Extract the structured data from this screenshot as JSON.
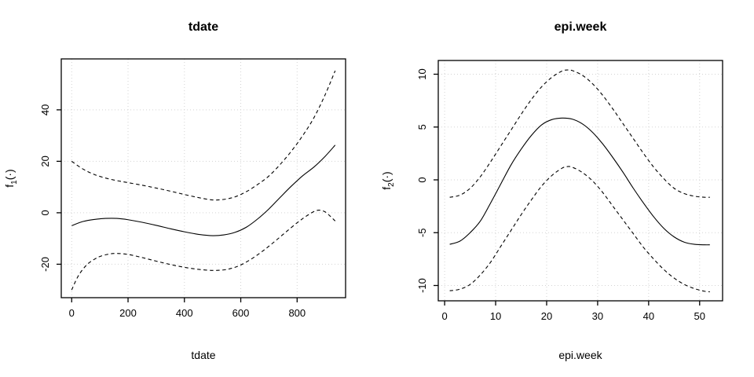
{
  "figure": {
    "background_color": "#ffffff",
    "curve_color": "#000000",
    "grid_color": "#d3d3d3",
    "axis_color": "#000000"
  },
  "chart_data": [
    {
      "type": "line",
      "title": "tdate",
      "xlabel": "tdate",
      "ylabel": "f1(·)",
      "ylabel_parts": {
        "base": "f",
        "sub": "1",
        "args": "(·)"
      },
      "xlim": [
        -37,
        972
      ],
      "ylim": [
        -33,
        59.8
      ],
      "xticks": [
        0,
        200,
        400,
        600,
        800
      ],
      "yticks": [
        -20,
        0,
        20,
        40
      ],
      "grid": true,
      "legend": "none",
      "series": [
        {
          "name": "fitted-estimate",
          "style": "solid",
          "points": [
            [
              0,
              -5.0
            ],
            [
              40,
              -3.4
            ],
            [
              80,
              -2.6
            ],
            [
              120,
              -2.2
            ],
            [
              160,
              -2.2
            ],
            [
              200,
              -2.7
            ],
            [
              250,
              -3.7
            ],
            [
              300,
              -4.9
            ],
            [
              350,
              -6.2
            ],
            [
              400,
              -7.4
            ],
            [
              450,
              -8.4
            ],
            [
              500,
              -8.9
            ],
            [
              540,
              -8.6
            ],
            [
              580,
              -7.6
            ],
            [
              620,
              -5.6
            ],
            [
              660,
              -2.4
            ],
            [
              700,
              1.5
            ],
            [
              740,
              6.0
            ],
            [
              780,
              10.4
            ],
            [
              820,
              14.4
            ],
            [
              860,
              17.8
            ],
            [
              900,
              22.0
            ],
            [
              935,
              26.3
            ]
          ]
        },
        {
          "name": "upper-confidence-band",
          "style": "dashed",
          "points": [
            [
              0,
              20.0
            ],
            [
              40,
              17.0
            ],
            [
              80,
              14.9
            ],
            [
              120,
              13.5
            ],
            [
              160,
              12.5
            ],
            [
              200,
              11.7
            ],
            [
              250,
              10.7
            ],
            [
              300,
              9.6
            ],
            [
              350,
              8.4
            ],
            [
              400,
              7.1
            ],
            [
              450,
              5.9
            ],
            [
              500,
              5.0
            ],
            [
              540,
              5.2
            ],
            [
              580,
              6.2
            ],
            [
              620,
              8.2
            ],
            [
              660,
              11.0
            ],
            [
              700,
              14.3
            ],
            [
              740,
              18.8
            ],
            [
              780,
              24.0
            ],
            [
              820,
              30.0
            ],
            [
              860,
              37.0
            ],
            [
              900,
              46.0
            ],
            [
              935,
              55.2
            ]
          ]
        },
        {
          "name": "lower-confidence-band",
          "style": "dashed",
          "points": [
            [
              0,
              -30.0
            ],
            [
              20,
              -25.2
            ],
            [
              40,
              -21.9
            ],
            [
              60,
              -19.6
            ],
            [
              80,
              -18.1
            ],
            [
              100,
              -17.0
            ],
            [
              130,
              -16.1
            ],
            [
              160,
              -15.8
            ],
            [
              200,
              -16.2
            ],
            [
              250,
              -17.4
            ],
            [
              300,
              -18.8
            ],
            [
              350,
              -20.1
            ],
            [
              400,
              -21.2
            ],
            [
              450,
              -22.0
            ],
            [
              500,
              -22.4
            ],
            [
              540,
              -22.2
            ],
            [
              570,
              -21.5
            ],
            [
              600,
              -20.3
            ],
            [
              640,
              -17.8
            ],
            [
              680,
              -14.7
            ],
            [
              720,
              -11.2
            ],
            [
              760,
              -7.5
            ],
            [
              800,
              -3.9
            ],
            [
              830,
              -1.5
            ],
            [
              860,
              0.5
            ],
            [
              880,
              1.0
            ],
            [
              900,
              0.3
            ],
            [
              920,
              -1.6
            ],
            [
              935,
              -3.2
            ]
          ]
        }
      ]
    },
    {
      "type": "line",
      "title": "epi.week",
      "xlabel": "epi.week",
      "ylabel": "f2(·)",
      "ylabel_parts": {
        "base": "f",
        "sub": "2",
        "args": "(·)"
      },
      "xlim": [
        -1.25,
        54.5
      ],
      "ylim": [
        -11.45,
        11.3
      ],
      "xticks": [
        0,
        10,
        20,
        30,
        40,
        50
      ],
      "yticks": [
        -10,
        -5,
        0,
        5,
        10
      ],
      "grid": true,
      "legend": "none",
      "series": [
        {
          "name": "fitted-estimate",
          "style": "solid",
          "points": [
            [
              1,
              -6.1
            ],
            [
              3,
              -5.8
            ],
            [
              5,
              -5.0
            ],
            [
              7,
              -3.9
            ],
            [
              9,
              -2.2
            ],
            [
              11,
              -0.4
            ],
            [
              13,
              1.4
            ],
            [
              15,
              2.9
            ],
            [
              17,
              4.2
            ],
            [
              19,
              5.2
            ],
            [
              21,
              5.7
            ],
            [
              23,
              5.85
            ],
            [
              25,
              5.75
            ],
            [
              27,
              5.3
            ],
            [
              29,
              4.5
            ],
            [
              31,
              3.4
            ],
            [
              33,
              2.1
            ],
            [
              35,
              0.7
            ],
            [
              37,
              -0.8
            ],
            [
              39,
              -2.2
            ],
            [
              41,
              -3.5
            ],
            [
              43,
              -4.6
            ],
            [
              45,
              -5.4
            ],
            [
              47,
              -5.9
            ],
            [
              49,
              -6.1
            ],
            [
              51,
              -6.15
            ],
            [
              52,
              -6.15
            ]
          ]
        },
        {
          "name": "upper-confidence-band",
          "style": "dashed",
          "points": [
            [
              1,
              -1.65
            ],
            [
              3,
              -1.45
            ],
            [
              5,
              -0.8
            ],
            [
              7,
              0.3
            ],
            [
              9,
              1.7
            ],
            [
              11,
              3.2
            ],
            [
              13,
              4.7
            ],
            [
              15,
              6.2
            ],
            [
              17,
              7.6
            ],
            [
              19,
              8.8
            ],
            [
              21,
              9.7
            ],
            [
              23,
              10.3
            ],
            [
              24,
              10.4
            ],
            [
              25,
              10.35
            ],
            [
              27,
              9.9
            ],
            [
              29,
              9.1
            ],
            [
              31,
              8.0
            ],
            [
              33,
              6.7
            ],
            [
              35,
              5.3
            ],
            [
              37,
              3.9
            ],
            [
              39,
              2.5
            ],
            [
              41,
              1.2
            ],
            [
              43,
              0.1
            ],
            [
              45,
              -0.8
            ],
            [
              47,
              -1.3
            ],
            [
              49,
              -1.55
            ],
            [
              51,
              -1.65
            ],
            [
              52,
              -1.65
            ]
          ]
        },
        {
          "name": "lower-confidence-band",
          "style": "dashed",
          "points": [
            [
              1,
              -10.5
            ],
            [
              3,
              -10.35
            ],
            [
              5,
              -9.9
            ],
            [
              7,
              -9.0
            ],
            [
              9,
              -7.8
            ],
            [
              11,
              -6.3
            ],
            [
              13,
              -4.8
            ],
            [
              15,
              -3.3
            ],
            [
              17,
              -1.9
            ],
            [
              19,
              -0.6
            ],
            [
              21,
              0.4
            ],
            [
              23,
              1.1
            ],
            [
              24,
              1.25
            ],
            [
              25,
              1.2
            ],
            [
              27,
              0.7
            ],
            [
              29,
              -0.1
            ],
            [
              31,
              -1.2
            ],
            [
              33,
              -2.5
            ],
            [
              35,
              -3.8
            ],
            [
              37,
              -5.1
            ],
            [
              39,
              -6.4
            ],
            [
              41,
              -7.5
            ],
            [
              43,
              -8.5
            ],
            [
              45,
              -9.3
            ],
            [
              47,
              -9.9
            ],
            [
              49,
              -10.3
            ],
            [
              51,
              -10.55
            ],
            [
              52,
              -10.6
            ]
          ]
        }
      ]
    }
  ]
}
